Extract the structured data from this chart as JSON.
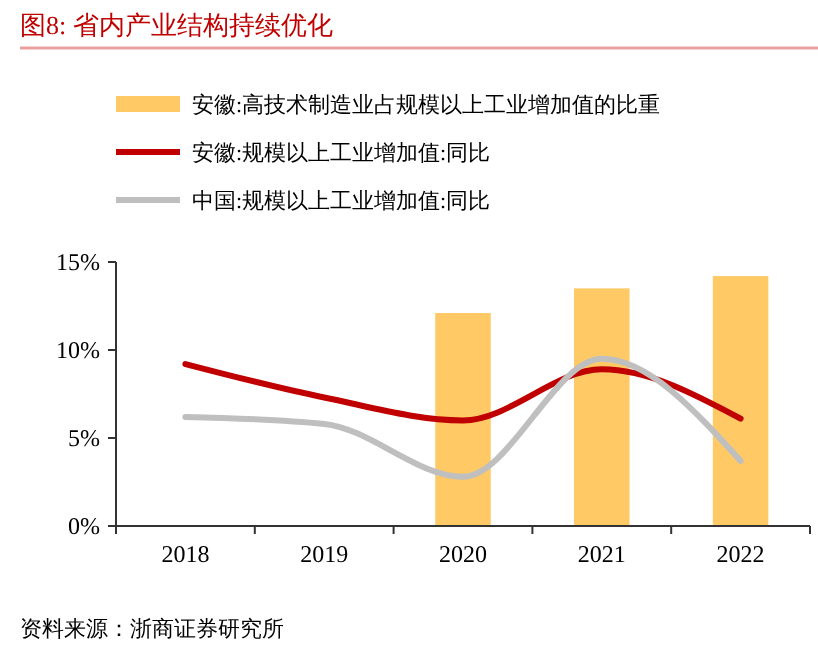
{
  "chart_data": {
    "type": "bar",
    "title": "图8:   省内产业结构持续优化",
    "categories": [
      "2018",
      "2019",
      "2020",
      "2021",
      "2022"
    ],
    "series": [
      {
        "name": "安徽:高技术制造业占规模以上工业增加值的比重",
        "color": "#ffc966",
        "values": [
          null,
          null,
          12.1,
          13.5,
          14.2
        ]
      },
      {
        "name": "安徽:规模以上工业增加值:同比",
        "type": "line",
        "color": "#c00000",
        "values": [
          9.2,
          7.3,
          6.0,
          8.9,
          6.1
        ]
      },
      {
        "name": "中国:规模以上工业增加值:同比",
        "type": "line",
        "color": "#bfbfbf",
        "values": [
          6.2,
          5.8,
          2.8,
          9.5,
          3.7
        ]
      }
    ],
    "ylim": [
      0,
      15
    ],
    "yticks": [
      {
        "value": 0,
        "label": "0%"
      },
      {
        "value": 5,
        "label": "5%"
      },
      {
        "value": 10,
        "label": "10%"
      },
      {
        "value": 15,
        "label": "15%"
      }
    ],
    "legend": "top",
    "grid": false,
    "annotations": [
      "资料来源：浙商证券研究所"
    ]
  }
}
